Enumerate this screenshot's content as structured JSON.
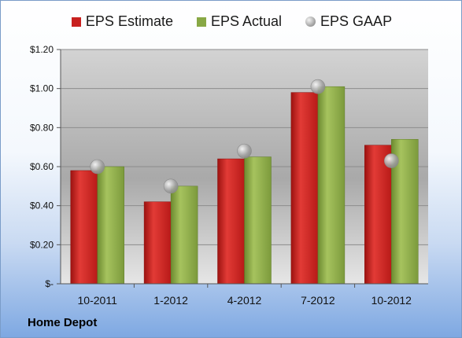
{
  "company": "Home Depot",
  "colors": {
    "estimate": "#c8201f",
    "actual": "#88a845",
    "gaap": "#a8a8a8"
  },
  "chart_data": {
    "type": "bar",
    "categories": [
      "10-2011",
      "1-2012",
      "4-2012",
      "7-2012",
      "10-2012"
    ],
    "series": [
      {
        "name": "EPS Estimate",
        "kind": "bar",
        "values": [
          0.58,
          0.42,
          0.64,
          0.98,
          0.71
        ]
      },
      {
        "name": "EPS Actual",
        "kind": "bar",
        "values": [
          0.6,
          0.5,
          0.65,
          1.01,
          0.74
        ]
      },
      {
        "name": "EPS GAAP",
        "kind": "marker",
        "values": [
          0.6,
          0.5,
          0.68,
          1.01,
          0.63
        ]
      }
    ],
    "ylim": [
      0,
      1.2
    ],
    "yticks": [
      "$-",
      "$0.20",
      "$0.40",
      "$0.60",
      "$0.80",
      "$1.00",
      "$1.20"
    ],
    "grid": true,
    "legend_position": "top"
  }
}
